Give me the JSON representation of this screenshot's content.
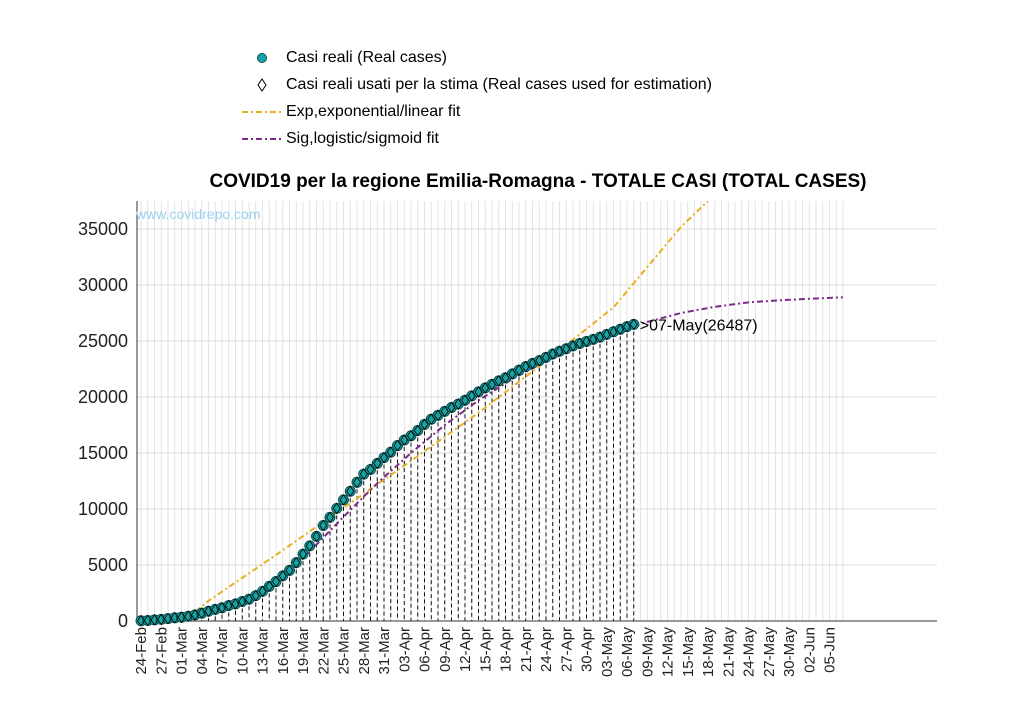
{
  "chart_data": {
    "type": "line",
    "title": "COVID19 per la regione Emilia-Romagna - TOTALE CASI (TOTAL CASES)",
    "watermark": "www.covidrepo.com",
    "xlabel": "",
    "ylabel": "",
    "ylim": [
      0,
      37500
    ],
    "yticks": [
      0,
      5000,
      10000,
      15000,
      20000,
      25000,
      30000,
      35000
    ],
    "x_tick_labels": [
      "24-Feb",
      "27-Feb",
      "01-Mar",
      "04-Mar",
      "07-Mar",
      "10-Mar",
      "13-Mar",
      "16-Mar",
      "19-Mar",
      "22-Mar",
      "25-Mar",
      "28-Mar",
      "31-Mar",
      "03-Apr",
      "06-Apr",
      "09-Apr",
      "12-Apr",
      "15-Apr",
      "18-Apr",
      "21-Apr",
      "24-Apr",
      "27-Apr",
      "30-Apr",
      "03-May",
      "06-May",
      "09-May",
      "12-May",
      "15-May",
      "18-May",
      "21-May",
      "24-May",
      "27-May",
      "30-May",
      "02-Jun",
      "05-Jun"
    ],
    "x_day_range": [
      0,
      104
    ],
    "grid": true,
    "legend": [
      {
        "label": "Casi reali (Real cases)",
        "symbol": "circle",
        "color": "#1aa3a3"
      },
      {
        "label": "Casi reali usati per la stima (Real cases used for estimation)",
        "symbol": "diamond",
        "color": "#000000"
      },
      {
        "label": "Exp,exponential/linear fit",
        "symbol": "dashdot",
        "color": "#e8b020"
      },
      {
        "label": "Sig,logistic/sigmoid fit",
        "symbol": "dashdot",
        "color": "#7a2a88"
      }
    ],
    "legend_position": "top",
    "annotation": ">07-May(26487)",
    "series": [
      {
        "name": "Casi reali (Real cases)",
        "x": [
          0,
          1,
          2,
          3,
          4,
          5,
          6,
          7,
          8,
          9,
          10,
          11,
          12,
          13,
          14,
          15,
          16,
          17,
          18,
          19,
          20,
          21,
          22,
          23,
          24,
          25,
          26,
          27,
          28,
          29,
          30,
          31,
          32,
          33,
          34,
          35,
          36,
          37,
          38,
          39,
          40,
          41,
          42,
          43,
          44,
          45,
          46,
          47,
          48,
          49,
          50,
          51,
          52,
          53,
          54,
          55,
          56,
          57,
          58,
          59,
          60,
          61,
          62,
          63,
          64,
          65,
          66,
          67,
          68,
          69,
          70,
          71,
          72,
          73
        ],
        "y": [
          26,
          47,
          97,
          145,
          217,
          285,
          335,
          420,
          544,
          698,
          870,
          1040,
          1180,
          1386,
          1533,
          1739,
          1947,
          2263,
          2644,
          3093,
          3522,
          4031,
          4525,
          5214,
          5968,
          6705,
          7555,
          8531,
          9254,
          10054,
          10816,
          11588,
          12383,
          13119,
          13531,
          14074,
          14586,
          15079,
          15665,
          16163,
          16540,
          17012,
          17556,
          18019,
          18364,
          18722,
          19060,
          19368,
          19706,
          20098,
          20455,
          20814,
          21131,
          21440,
          21714,
          22062,
          22395,
          22719,
          23000,
          23248,
          23542,
          23840,
          24085,
          24310,
          24567,
          24782,
          24960,
          25150,
          25350,
          25590,
          25830,
          26050,
          26280,
          26487
        ]
      },
      {
        "name": "Casi reali usati per la stima (Real cases used for estimation)",
        "x": [
          0,
          1,
          2,
          3,
          4,
          5,
          6,
          7,
          8,
          9,
          10,
          11,
          12,
          13,
          14,
          15,
          16,
          17,
          18,
          19,
          20,
          21,
          22,
          23,
          24,
          25,
          26,
          27,
          28,
          29,
          30,
          31,
          32,
          33,
          34,
          35,
          36,
          37,
          38,
          39,
          40,
          41,
          42,
          43,
          44,
          45,
          46,
          47,
          48,
          49,
          50,
          51,
          52,
          53,
          54,
          55,
          56,
          57,
          58,
          59,
          60,
          61,
          62,
          63,
          64,
          65,
          66,
          67,
          68,
          69,
          70,
          71,
          72,
          73
        ],
        "y": [
          26,
          47,
          97,
          145,
          217,
          285,
          335,
          420,
          544,
          698,
          870,
          1040,
          1180,
          1386,
          1533,
          1739,
          1947,
          2263,
          2644,
          3093,
          3522,
          4031,
          4525,
          5214,
          5968,
          6705,
          7555,
          8531,
          9254,
          10054,
          10816,
          11588,
          12383,
          13119,
          13531,
          14074,
          14586,
          15079,
          15665,
          16163,
          16540,
          17012,
          17556,
          18019,
          18364,
          18722,
          19060,
          19368,
          19706,
          20098,
          20455,
          20814,
          21131,
          21440,
          21714,
          22062,
          22395,
          22719,
          23000,
          23248,
          23542,
          23840,
          24085,
          24310,
          24567,
          24782,
          24960,
          25150,
          25350,
          25590,
          25830,
          26050,
          26280,
          26487
        ]
      },
      {
        "name": "Exp,exponential/linear fit",
        "x": [
          0,
          5,
          8,
          10,
          20,
          30,
          40,
          50,
          60,
          70,
          80,
          84
        ],
        "y": [
          0,
          200,
          800,
          1800,
          5900,
          10100,
          14300,
          18600,
          23200,
          28000,
          35200,
          37500
        ]
      },
      {
        "name": "Sig,logistic/sigmoid fit",
        "x": [
          0,
          5,
          10,
          15,
          20,
          25,
          30,
          35,
          40,
          45,
          50,
          55,
          60,
          65,
          70,
          75,
          80,
          85,
          90,
          95,
          100,
          104
        ],
        "y": [
          0,
          150,
          600,
          1700,
          3500,
          6200,
          9300,
          12300,
          15000,
          17500,
          19700,
          21600,
          23200,
          24500,
          25700,
          26700,
          27500,
          28050,
          28450,
          28650,
          28800,
          28900
        ]
      }
    ]
  }
}
